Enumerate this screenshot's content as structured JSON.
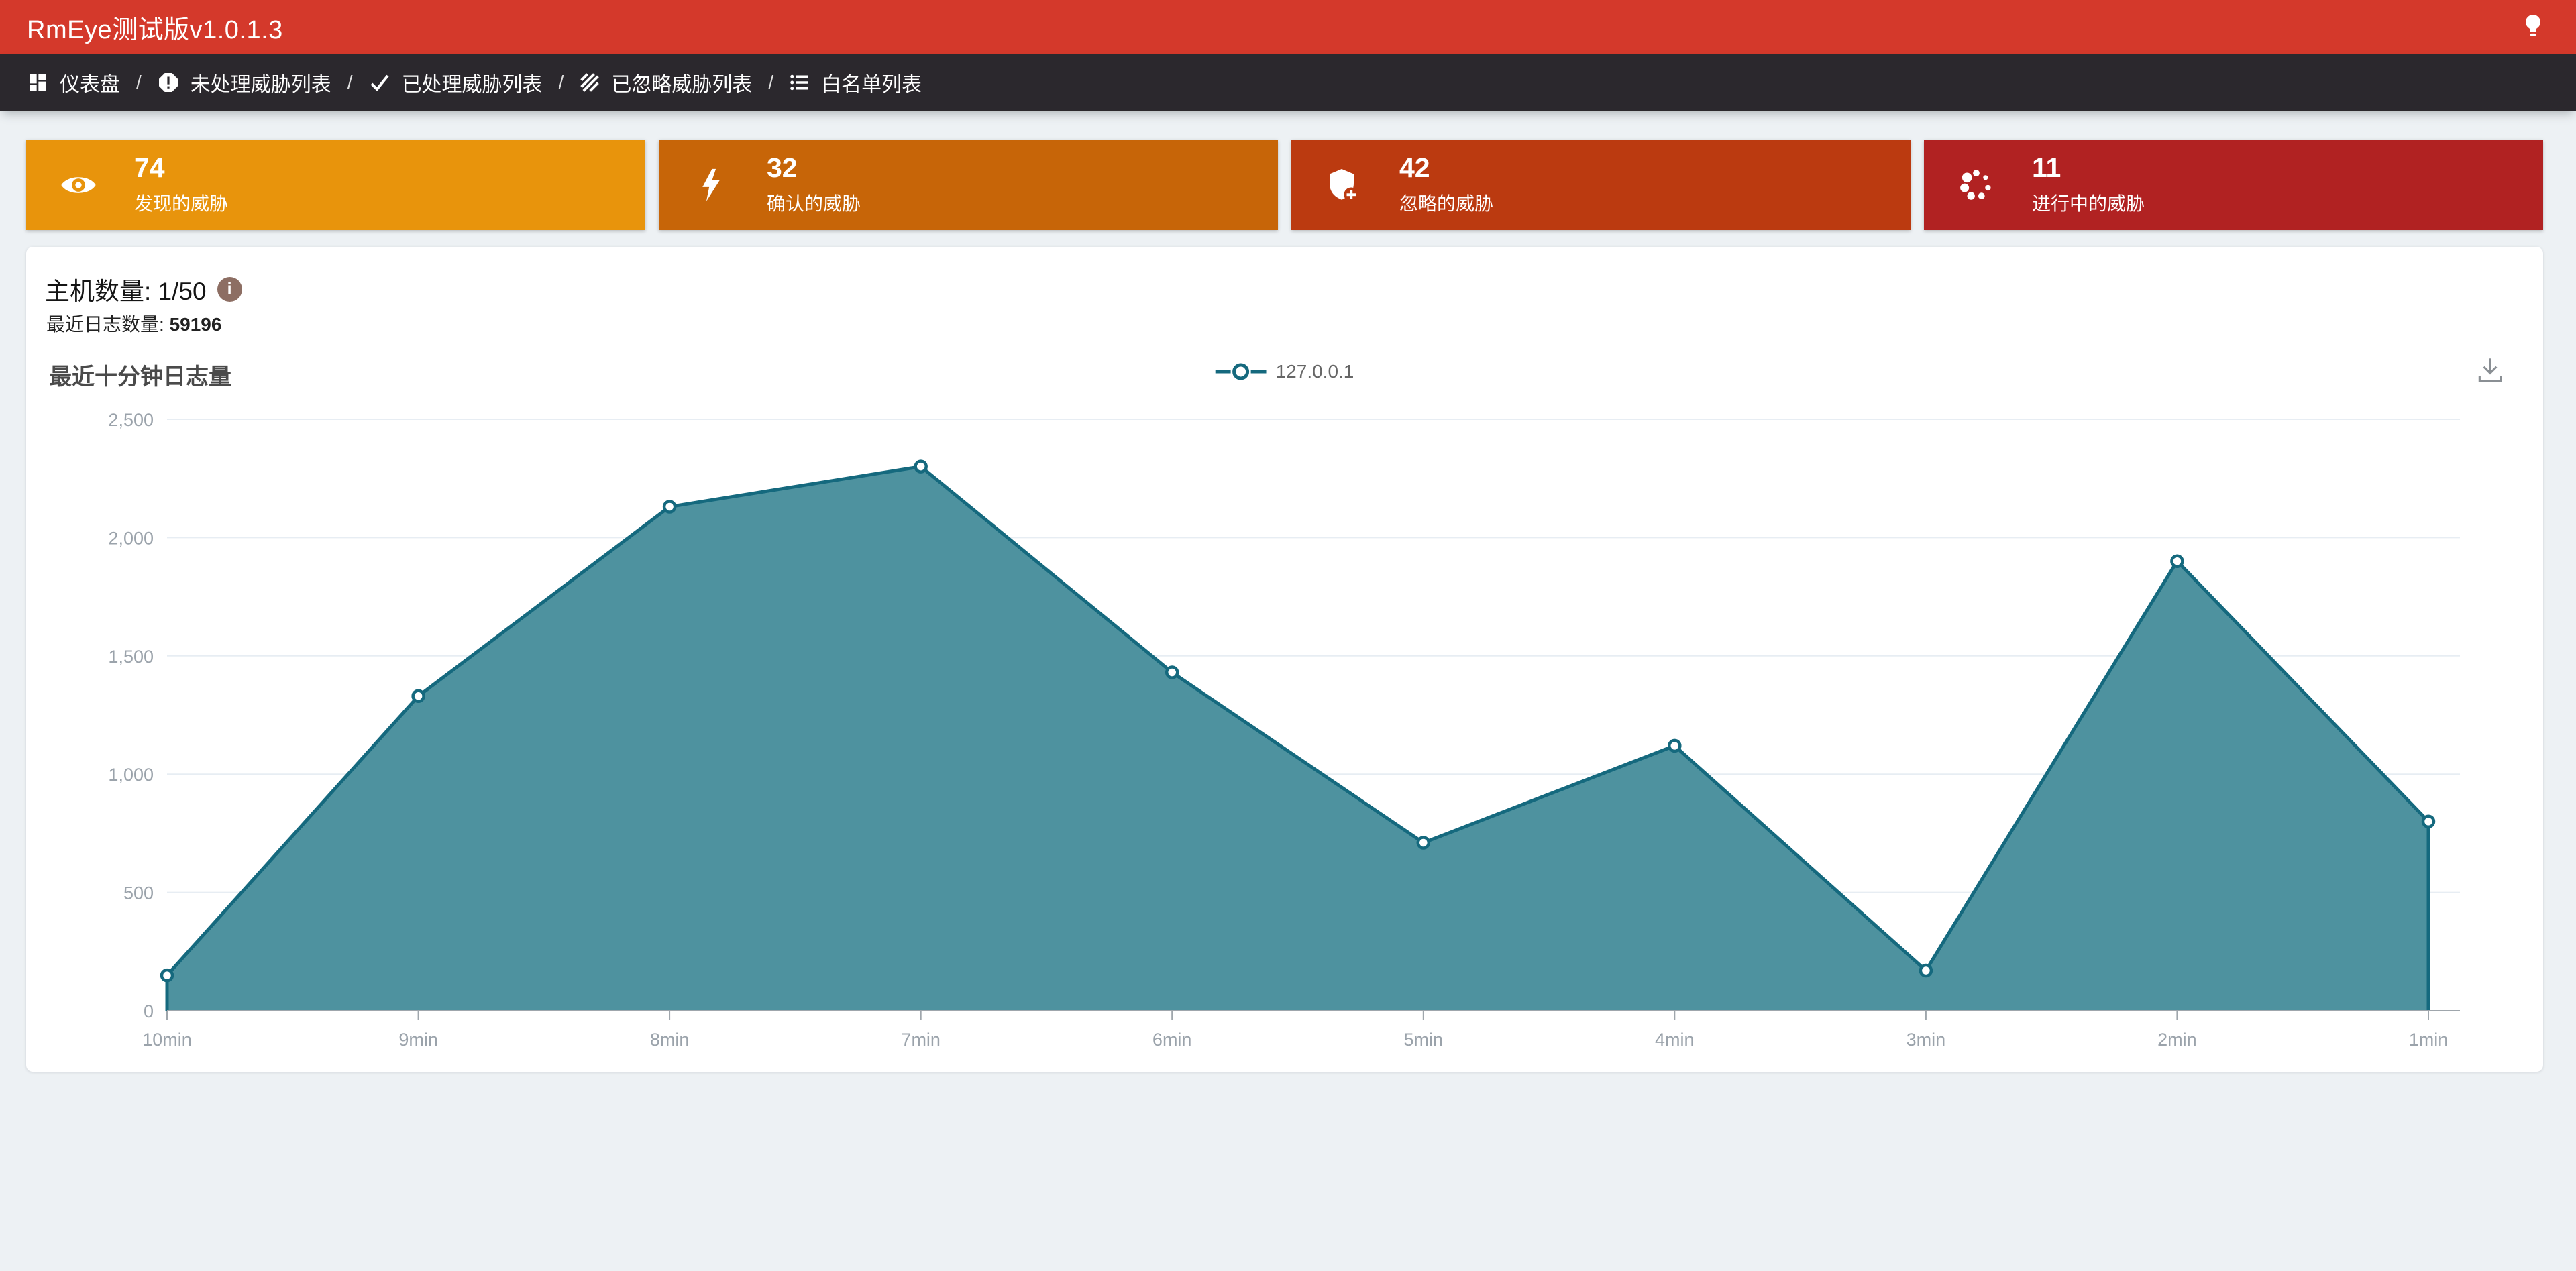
{
  "header": {
    "title": "RmEye测试版v1.0.1.3"
  },
  "nav": {
    "separator": "/",
    "items": [
      {
        "key": "dashboard",
        "label": "仪表盘",
        "icon": "dashboard-icon"
      },
      {
        "key": "unhandled-threats",
        "label": "未处理威胁列表",
        "icon": "error-icon"
      },
      {
        "key": "handled-threats",
        "label": "已处理威胁列表",
        "icon": "check-icon"
      },
      {
        "key": "ignored-threats",
        "label": "已忽略威胁列表",
        "icon": "hatch-icon"
      },
      {
        "key": "whitelist",
        "label": "白名单列表",
        "icon": "list-icon"
      }
    ]
  },
  "stats": [
    {
      "key": "discovered",
      "value": "74",
      "label": "发现的威胁",
      "color": "#E8940C",
      "icon": "eye-icon"
    },
    {
      "key": "confirmed",
      "value": "32",
      "label": "确认的威胁",
      "color": "#C76508",
      "icon": "bolt-icon"
    },
    {
      "key": "ignored",
      "value": "42",
      "label": "忽略的威胁",
      "color": "#BB3A10",
      "icon": "shield-plus-icon"
    },
    {
      "key": "in-progress",
      "value": "11",
      "label": "进行中的威胁",
      "color": "#B12222",
      "icon": "spinner-icon"
    }
  ],
  "panel": {
    "host_count": "主机数量: 1/50",
    "recent_log_label": "最近日志数量: ",
    "recent_log_value": "59196"
  },
  "chart_data": {
    "type": "area",
    "title": "最近十分钟日志量",
    "categories": [
      "10min",
      "9min",
      "8min",
      "7min",
      "6min",
      "5min",
      "4min",
      "3min",
      "2min",
      "1min"
    ],
    "series": [
      {
        "name": "127.0.0.1",
        "values": [
          150,
          1330,
          2130,
          2300,
          1430,
          710,
          1120,
          170,
          1900,
          800
        ]
      }
    ],
    "ylim": [
      0,
      2500
    ],
    "yticks": [
      0,
      500,
      1000,
      1500,
      2000,
      2500
    ],
    "xlabel": "",
    "ylabel": "",
    "grid": true,
    "legend_position": "top-center",
    "line_color": "#15697E",
    "fill_color": "#4E929F",
    "grid_color": "#E7EDF3",
    "axis_color": "#9BA3AB"
  }
}
